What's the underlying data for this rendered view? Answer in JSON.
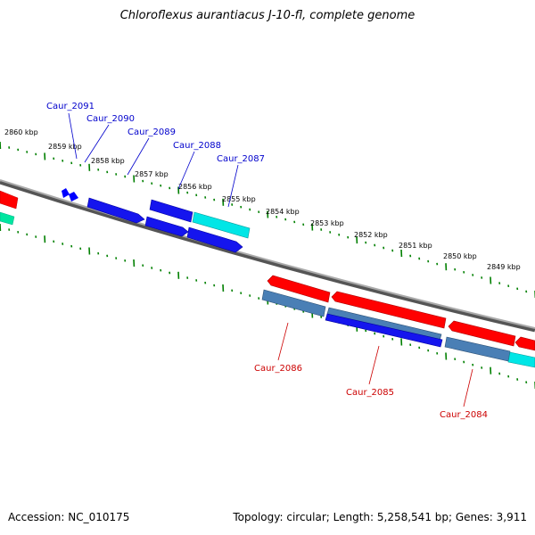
{
  "title": "Chloroflexus aurantiacus J-10-fl, complete genome",
  "footer": {
    "accession": "Accession: NC_010175",
    "summary": "Topology: circular; Length: 5,258,541 bp; Genes: 3,911"
  },
  "colors": {
    "backbone": "#808080",
    "forward_gene": "#0000ff",
    "reverse_gene": "#ff0000",
    "rna_or_feature": "#00ffff",
    "steel_gene": "#4682b4",
    "tick": "#008000",
    "top_label": "#0000cc",
    "bottom_label": "#cc0000"
  },
  "scale_labels": [
    "2860 kbp",
    "2859 kbp",
    "2858 kbp",
    "2857 kbp",
    "2856 kbp",
    "2855 kbp",
    "2854 kbp",
    "2853 kbp",
    "2852 kbp",
    "2851 kbp",
    "2850 kbp",
    "2849 kbp"
  ],
  "top_gene_labels": [
    "Caur_2091",
    "Caur_2090",
    "Caur_2089",
    "Caur_2088",
    "Caur_2087"
  ],
  "bottom_gene_labels": [
    "Caur_2086",
    "Caur_2085",
    "Caur_2084"
  ]
}
